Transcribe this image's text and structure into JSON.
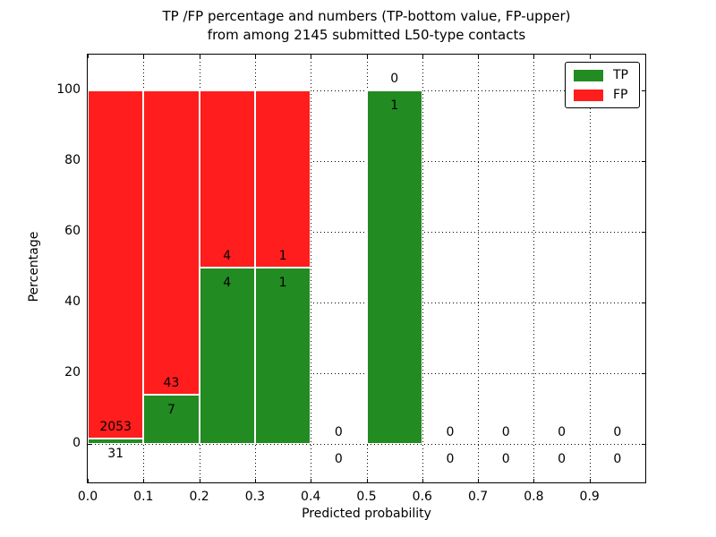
{
  "title": {
    "line1": "TP /FP percentage and numbers (TP-bottom value, FP-upper)",
    "line2": "from among 2145 submitted L50-type contacts"
  },
  "colors": {
    "tp": "#228b22",
    "fp": "#ff1d1d",
    "axis": "#000000",
    "background": "#ffffff",
    "text": "#000000"
  },
  "legend": {
    "position": "upper right",
    "items": [
      {
        "label": "TP",
        "color_key": "tp"
      },
      {
        "label": "FP",
        "color_key": "fp"
      }
    ]
  },
  "chart_data": {
    "type": "bar",
    "stacked": true,
    "title": "TP /FP percentage and numbers (TP-bottom value, FP-upper) from among 2145 submitted L50-type contacts",
    "xlabel": "Predicted probability",
    "ylabel": "Percentage",
    "xlim": [
      0.0,
      1.0
    ],
    "ylim": [
      -11,
      110
    ],
    "grid": "dotted",
    "total_contacts": 2145,
    "x_ticks": [
      "0.0",
      "0.1",
      "0.2",
      "0.3",
      "0.4",
      "0.5",
      "0.6",
      "0.7",
      "0.8",
      "0.9"
    ],
    "y_ticks": [
      {
        "label": "0",
        "value": 0
      },
      {
        "label": "20",
        "value": 20
      },
      {
        "label": "40",
        "value": 40
      },
      {
        "label": "60",
        "value": 60
      },
      {
        "label": "80",
        "value": 80
      },
      {
        "label": "100",
        "value": 100
      }
    ],
    "series_names": [
      "TP",
      "FP"
    ],
    "bins": [
      {
        "range": [
          0.0,
          0.1
        ],
        "tp_count": "31",
        "fp_count": "2053",
        "tp_pct": 1.5,
        "fp_pct": 98.5
      },
      {
        "range": [
          0.1,
          0.2
        ],
        "tp_count": "7",
        "fp_count": "43",
        "tp_pct": 14,
        "fp_pct": 86
      },
      {
        "range": [
          0.2,
          0.3
        ],
        "tp_count": "4",
        "fp_count": "4",
        "tp_pct": 50,
        "fp_pct": 50
      },
      {
        "range": [
          0.3,
          0.4
        ],
        "tp_count": "1",
        "fp_count": "1",
        "tp_pct": 50,
        "fp_pct": 50
      },
      {
        "range": [
          0.4,
          0.5
        ],
        "tp_count": "0",
        "fp_count": "0",
        "tp_pct": 0,
        "fp_pct": 0
      },
      {
        "range": [
          0.5,
          0.6
        ],
        "tp_count": "1",
        "fp_count": "0",
        "tp_pct": 100,
        "fp_pct": 0
      },
      {
        "range": [
          0.6,
          0.7
        ],
        "tp_count": "0",
        "fp_count": "0",
        "tp_pct": 0,
        "fp_pct": 0
      },
      {
        "range": [
          0.7,
          0.8
        ],
        "tp_count": "0",
        "fp_count": "0",
        "tp_pct": 0,
        "fp_pct": 0
      },
      {
        "range": [
          0.8,
          0.9
        ],
        "tp_count": "0",
        "fp_count": "0",
        "tp_pct": 0,
        "fp_pct": 0
      },
      {
        "range": [
          0.9,
          1.0
        ],
        "tp_count": "0",
        "fp_count": "0",
        "tp_pct": 0,
        "fp_pct": 0
      }
    ]
  }
}
